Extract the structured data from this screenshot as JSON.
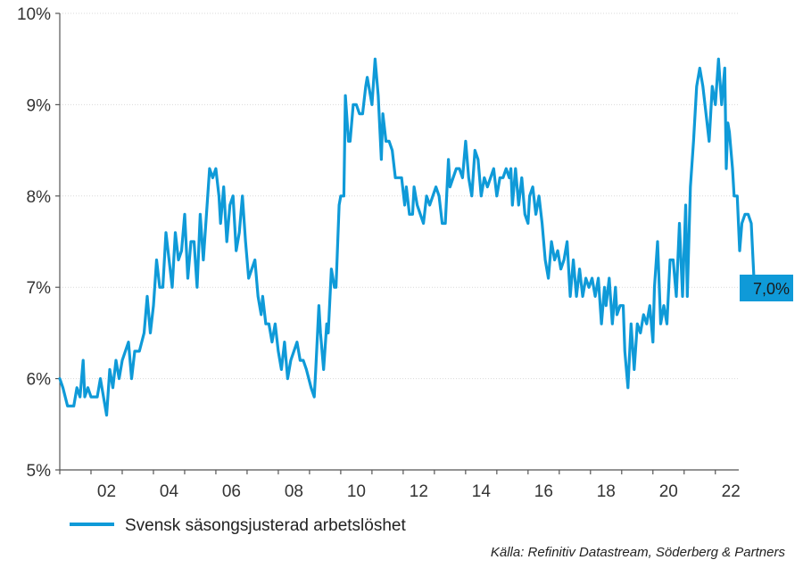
{
  "chart_data": {
    "type": "line",
    "ylim": [
      5,
      10
    ],
    "xlim": [
      2001,
      2022.75
    ],
    "y_ticks": [
      {
        "value": 5,
        "label": "5%"
      },
      {
        "value": 6,
        "label": "6%"
      },
      {
        "value": 7,
        "label": "7%"
      },
      {
        "value": 8,
        "label": "8%"
      },
      {
        "value": 9,
        "label": "9%"
      },
      {
        "value": 10,
        "label": "10%"
      }
    ],
    "x_ticks": [
      {
        "value": 2002,
        "label": "02"
      },
      {
        "value": 2004,
        "label": "04"
      },
      {
        "value": 2006,
        "label": "06"
      },
      {
        "value": 2008,
        "label": "08"
      },
      {
        "value": 2010,
        "label": "10"
      },
      {
        "value": 2012,
        "label": "12"
      },
      {
        "value": 2014,
        "label": "14"
      },
      {
        "value": 2016,
        "label": "16"
      },
      {
        "value": 2018,
        "label": "18"
      },
      {
        "value": 2020,
        "label": "20"
      },
      {
        "value": 2022,
        "label": "22"
      }
    ],
    "grid": "horizontal",
    "legend_position": "bottom-left",
    "series": [
      {
        "name": "Svensk säsongsjusterad arbetslöshet",
        "color": "#0f9ad8",
        "points": [
          [
            2001.0,
            6.0
          ],
          [
            2001.1,
            5.9
          ],
          [
            2001.25,
            5.7
          ],
          [
            2001.45,
            5.7
          ],
          [
            2001.55,
            5.9
          ],
          [
            2001.65,
            5.8
          ],
          [
            2001.75,
            6.2
          ],
          [
            2001.8,
            5.8
          ],
          [
            2001.9,
            5.9
          ],
          [
            2002.0,
            5.8
          ],
          [
            2002.2,
            5.8
          ],
          [
            2002.3,
            6.0
          ],
          [
            2002.4,
            5.8
          ],
          [
            2002.5,
            5.6
          ],
          [
            2002.6,
            6.1
          ],
          [
            2002.7,
            5.9
          ],
          [
            2002.8,
            6.2
          ],
          [
            2002.9,
            6.0
          ],
          [
            2003.0,
            6.2
          ],
          [
            2003.1,
            6.3
          ],
          [
            2003.2,
            6.4
          ],
          [
            2003.3,
            6.0
          ],
          [
            2003.4,
            6.3
          ],
          [
            2003.55,
            6.3
          ],
          [
            2003.7,
            6.5
          ],
          [
            2003.8,
            6.9
          ],
          [
            2003.9,
            6.5
          ],
          [
            2004.0,
            6.8
          ],
          [
            2004.1,
            7.3
          ],
          [
            2004.2,
            7.0
          ],
          [
            2004.3,
            7.0
          ],
          [
            2004.4,
            7.6
          ],
          [
            2004.5,
            7.3
          ],
          [
            2004.6,
            7.0
          ],
          [
            2004.7,
            7.6
          ],
          [
            2004.8,
            7.3
          ],
          [
            2004.9,
            7.4
          ],
          [
            2005.0,
            7.8
          ],
          [
            2005.1,
            7.1
          ],
          [
            2005.2,
            7.5
          ],
          [
            2005.3,
            7.5
          ],
          [
            2005.4,
            7.0
          ],
          [
            2005.5,
            7.8
          ],
          [
            2005.6,
            7.3
          ],
          [
            2005.7,
            7.8
          ],
          [
            2005.8,
            8.3
          ],
          [
            2005.9,
            8.2
          ],
          [
            2006.0,
            8.3
          ],
          [
            2006.1,
            8.0
          ],
          [
            2006.15,
            7.7
          ],
          [
            2006.25,
            8.1
          ],
          [
            2006.35,
            7.5
          ],
          [
            2006.45,
            7.9
          ],
          [
            2006.55,
            8.0
          ],
          [
            2006.65,
            7.4
          ],
          [
            2006.75,
            7.6
          ],
          [
            2006.85,
            8.0
          ],
          [
            2006.95,
            7.5
          ],
          [
            2007.05,
            7.1
          ],
          [
            2007.15,
            7.2
          ],
          [
            2007.25,
            7.3
          ],
          [
            2007.35,
            6.9
          ],
          [
            2007.45,
            6.7
          ],
          [
            2007.5,
            6.9
          ],
          [
            2007.6,
            6.6
          ],
          [
            2007.7,
            6.6
          ],
          [
            2007.8,
            6.4
          ],
          [
            2007.9,
            6.6
          ],
          [
            2008.0,
            6.3
          ],
          [
            2008.1,
            6.1
          ],
          [
            2008.2,
            6.4
          ],
          [
            2008.3,
            6.0
          ],
          [
            2008.4,
            6.2
          ],
          [
            2008.5,
            6.3
          ],
          [
            2008.6,
            6.4
          ],
          [
            2008.7,
            6.2
          ],
          [
            2008.8,
            6.2
          ],
          [
            2008.9,
            6.1
          ],
          [
            2009.05,
            5.9
          ],
          [
            2009.15,
            5.8
          ],
          [
            2009.2,
            6.1
          ],
          [
            2009.3,
            6.8
          ],
          [
            2009.35,
            6.5
          ],
          [
            2009.45,
            6.1
          ],
          [
            2009.55,
            6.6
          ],
          [
            2009.6,
            6.5
          ],
          [
            2009.7,
            7.2
          ],
          [
            2009.8,
            7.0
          ],
          [
            2009.85,
            7.0
          ],
          [
            2009.95,
            7.9
          ],
          [
            2010.0,
            8.0
          ],
          [
            2010.1,
            8.0
          ],
          [
            2010.15,
            9.1
          ],
          [
            2010.25,
            8.6
          ],
          [
            2010.3,
            8.6
          ],
          [
            2010.4,
            9.0
          ],
          [
            2010.5,
            9.0
          ],
          [
            2010.6,
            8.9
          ],
          [
            2010.7,
            8.9
          ],
          [
            2010.8,
            9.2
          ],
          [
            2010.85,
            9.3
          ],
          [
            2010.9,
            9.2
          ],
          [
            2011.0,
            9.0
          ],
          [
            2011.1,
            9.5
          ],
          [
            2011.2,
            9.1
          ],
          [
            2011.3,
            8.4
          ],
          [
            2011.35,
            8.9
          ],
          [
            2011.45,
            8.6
          ],
          [
            2011.55,
            8.6
          ],
          [
            2011.65,
            8.5
          ],
          [
            2011.75,
            8.2
          ],
          [
            2011.85,
            8.2
          ],
          [
            2011.95,
            8.2
          ],
          [
            2012.05,
            7.9
          ],
          [
            2012.1,
            8.1
          ],
          [
            2012.2,
            7.8
          ],
          [
            2012.3,
            7.8
          ],
          [
            2012.35,
            8.1
          ],
          [
            2012.45,
            7.9
          ],
          [
            2012.55,
            7.8
          ],
          [
            2012.65,
            7.7
          ],
          [
            2012.75,
            8.0
          ],
          [
            2012.85,
            7.9
          ],
          [
            2012.95,
            8.0
          ],
          [
            2013.05,
            8.1
          ],
          [
            2013.15,
            8.0
          ],
          [
            2013.25,
            7.7
          ],
          [
            2013.35,
            7.7
          ],
          [
            2013.45,
            8.4
          ],
          [
            2013.5,
            8.1
          ],
          [
            2013.6,
            8.2
          ],
          [
            2013.7,
            8.3
          ],
          [
            2013.8,
            8.3
          ],
          [
            2013.9,
            8.2
          ],
          [
            2014.0,
            8.6
          ],
          [
            2014.1,
            8.2
          ],
          [
            2014.2,
            8.0
          ],
          [
            2014.3,
            8.5
          ],
          [
            2014.4,
            8.4
          ],
          [
            2014.5,
            8.0
          ],
          [
            2014.6,
            8.2
          ],
          [
            2014.7,
            8.1
          ],
          [
            2014.8,
            8.2
          ],
          [
            2014.9,
            8.3
          ],
          [
            2015.0,
            8.0
          ],
          [
            2015.1,
            8.2
          ],
          [
            2015.2,
            8.2
          ],
          [
            2015.3,
            8.3
          ],
          [
            2015.4,
            8.2
          ],
          [
            2015.45,
            8.3
          ],
          [
            2015.5,
            7.9
          ],
          [
            2015.6,
            8.3
          ],
          [
            2015.7,
            7.9
          ],
          [
            2015.8,
            8.2
          ],
          [
            2015.9,
            7.8
          ],
          [
            2016.0,
            7.7
          ],
          [
            2016.05,
            8.0
          ],
          [
            2016.15,
            8.1
          ],
          [
            2016.25,
            7.8
          ],
          [
            2016.35,
            8.0
          ],
          [
            2016.45,
            7.7
          ],
          [
            2016.55,
            7.3
          ],
          [
            2016.65,
            7.1
          ],
          [
            2016.75,
            7.5
          ],
          [
            2016.85,
            7.3
          ],
          [
            2016.95,
            7.4
          ],
          [
            2017.05,
            7.2
          ],
          [
            2017.15,
            7.3
          ],
          [
            2017.25,
            7.5
          ],
          [
            2017.35,
            6.9
          ],
          [
            2017.45,
            7.3
          ],
          [
            2017.55,
            6.9
          ],
          [
            2017.65,
            7.2
          ],
          [
            2017.75,
            6.9
          ],
          [
            2017.85,
            7.1
          ],
          [
            2017.95,
            7.0
          ],
          [
            2018.05,
            7.1
          ],
          [
            2018.15,
            6.9
          ],
          [
            2018.25,
            7.1
          ],
          [
            2018.35,
            6.6
          ],
          [
            2018.45,
            7.0
          ],
          [
            2018.5,
            6.8
          ],
          [
            2018.6,
            7.1
          ],
          [
            2018.7,
            6.6
          ],
          [
            2018.8,
            7.0
          ],
          [
            2018.85,
            6.7
          ],
          [
            2018.95,
            6.8
          ],
          [
            2019.05,
            6.8
          ],
          [
            2019.1,
            6.3
          ],
          [
            2019.2,
            5.9
          ],
          [
            2019.3,
            6.6
          ],
          [
            2019.4,
            6.1
          ],
          [
            2019.5,
            6.6
          ],
          [
            2019.6,
            6.5
          ],
          [
            2019.7,
            6.7
          ],
          [
            2019.8,
            6.6
          ],
          [
            2019.9,
            6.8
          ],
          [
            2020.0,
            6.4
          ],
          [
            2020.05,
            7.0
          ],
          [
            2020.15,
            7.5
          ],
          [
            2020.25,
            6.6
          ],
          [
            2020.35,
            6.8
          ],
          [
            2020.45,
            6.6
          ],
          [
            2020.55,
            7.3
          ],
          [
            2020.65,
            7.3
          ],
          [
            2020.75,
            6.9
          ],
          [
            2020.85,
            7.7
          ],
          [
            2020.95,
            6.9
          ],
          [
            2021.05,
            7.9
          ],
          [
            2021.1,
            6.9
          ],
          [
            2021.2,
            8.1
          ],
          [
            2021.3,
            8.6
          ],
          [
            2021.4,
            9.2
          ],
          [
            2021.5,
            9.4
          ],
          [
            2021.6,
            9.2
          ],
          [
            2021.7,
            8.9
          ],
          [
            2021.8,
            8.6
          ],
          [
            2021.9,
            9.2
          ],
          [
            2022.0,
            9.0
          ],
          [
            2022.1,
            9.5
          ],
          [
            2022.2,
            9.0
          ],
          [
            2022.3,
            9.4
          ],
          [
            2022.35,
            8.3
          ],
          [
            2022.4,
            8.8
          ],
          [
            2022.45,
            8.7
          ],
          [
            2022.55,
            8.3
          ],
          [
            2022.6,
            8.0
          ],
          [
            2022.7,
            8.0
          ],
          [
            2022.78,
            7.4
          ],
          [
            2022.85,
            7.7
          ],
          [
            2022.95,
            7.8
          ],
          [
            2023.05,
            7.8
          ],
          [
            2023.15,
            7.7
          ],
          [
            2023.25,
            7.0
          ]
        ]
      }
    ],
    "last_value_label": "7,0%",
    "last_value_color": "#0f9ad8",
    "source": "Källa: Refinitiv Datastream, Söderberg & Partners"
  }
}
